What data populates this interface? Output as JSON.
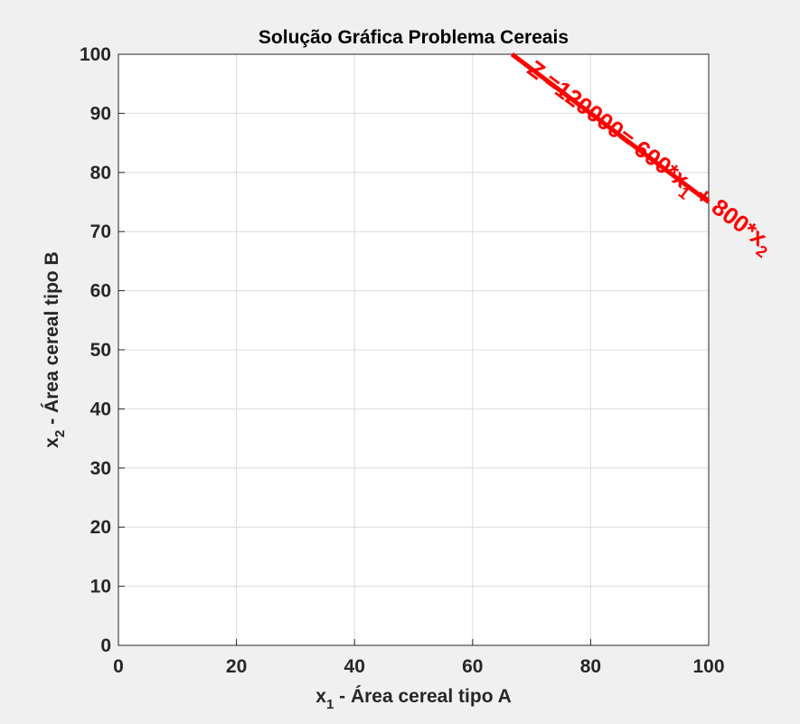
{
  "chart_data": {
    "type": "line",
    "title": "Solução Gráfica Problema Cereais",
    "xlabel": {
      "base": "x",
      "sub": "1",
      "rest": " - Área cereal tipo A"
    },
    "ylabel": {
      "base": "x",
      "sub": "2",
      "rest": " - Área cereal tipo B"
    },
    "xlim": [
      0,
      100
    ],
    "ylim": [
      0,
      100
    ],
    "xticks": [
      0,
      20,
      40,
      60,
      80,
      100
    ],
    "yticks": [
      0,
      10,
      20,
      30,
      40,
      50,
      60,
      70,
      80,
      90,
      100
    ],
    "grid": true,
    "series": [
      {
        "x": [
          66.667,
          100
        ],
        "y": [
          100,
          75
        ],
        "color": "#ff0000"
      }
    ],
    "annotation": {
      "parts": [
        "Z =120000= 600*x",
        "1",
        " + 800*x",
        "2"
      ],
      "x": 69,
      "y": 97,
      "color": "#ff0000"
    }
  }
}
